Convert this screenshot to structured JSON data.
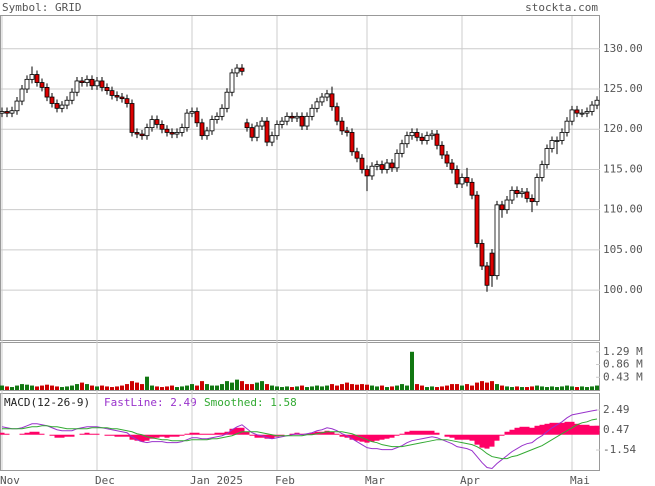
{
  "chart_data": [
    {
      "type": "candlestick",
      "title": "Symbol: GRID",
      "source": "stockta.com",
      "ylim": [
        93.8,
        134.2
      ],
      "yticks": [
        {
          "value": 100,
          "label": "100.00"
        },
        {
          "value": 105,
          "label": "105.00"
        },
        {
          "value": 110,
          "label": "110.00"
        },
        {
          "value": 115,
          "label": "115.00"
        },
        {
          "value": 120,
          "label": "120.00"
        },
        {
          "value": 125,
          "label": "125.00"
        },
        {
          "value": 130,
          "label": "130.00"
        }
      ],
      "grid": true,
      "up_color": "#ffffff",
      "down_color": "#dd0000",
      "open": [
        122.0,
        122.2,
        122.0,
        122.3,
        123.5,
        125.0,
        126.2,
        126.8,
        125.8,
        125.2,
        124.0,
        123.2,
        122.6,
        123.0,
        123.6,
        124.6,
        126.0,
        125.8,
        126.2,
        125.4,
        126.0,
        125.2,
        124.8,
        124.2,
        124.0,
        123.8,
        123.2,
        119.6,
        119.4,
        119.2,
        120.2,
        121.2,
        120.6,
        120.0,
        119.6,
        119.4,
        119.6,
        120.2,
        122.0,
        122.2,
        120.8,
        119.2,
        119.8,
        121.2,
        121.6,
        122.6,
        124.6,
        127.0,
        127.6,
        120.8,
        120.2,
        119.0,
        120.4,
        121.0,
        118.4,
        119.2,
        120.6,
        121.0,
        121.6,
        121.4,
        121.6,
        120.4,
        121.6,
        122.6,
        123.4,
        124.0,
        124.4,
        122.8,
        121.0,
        119.8,
        119.6,
        117.2,
        116.4,
        115.0,
        114.2,
        115.4,
        115.6,
        115.0,
        115.8,
        115.2,
        117.0,
        118.2,
        119.2,
        119.6,
        119.0,
        118.6,
        119.2,
        119.4,
        118.0,
        116.8,
        115.8,
        115.0,
        113.2,
        114.0,
        113.4,
        111.8,
        105.8,
        103.0,
        104.6,
        101.8,
        110.6,
        110.0,
        111.2,
        112.4,
        112.0,
        112.2,
        111.4,
        111.0,
        114.0,
        115.6,
        117.6,
        118.6,
        118.6,
        119.6,
        121.0,
        122.4,
        122.0,
        122.0,
        122.2,
        123.0
      ],
      "high": [
        122.7,
        122.7,
        122.8,
        124.0,
        125.5,
        126.7,
        127.8,
        127.3,
        126.3,
        125.7,
        124.5,
        123.7,
        123.5,
        124.1,
        125.1,
        126.5,
        126.5,
        126.7,
        126.7,
        126.5,
        126.5,
        125.7,
        125.3,
        124.7,
        124.5,
        124.3,
        123.7,
        120.1,
        119.9,
        120.7,
        121.7,
        121.7,
        121.1,
        120.5,
        120.1,
        120.1,
        120.7,
        122.5,
        122.7,
        122.7,
        121.3,
        120.3,
        121.7,
        122.1,
        123.1,
        125.1,
        127.5,
        128.1,
        128.1,
        121.3,
        120.7,
        120.9,
        121.5,
        121.5,
        119.7,
        121.1,
        121.5,
        122.1,
        122.1,
        122.1,
        122.1,
        122.1,
        123.1,
        123.9,
        124.5,
        124.9,
        125.3,
        123.3,
        121.5,
        120.3,
        120.1,
        117.7,
        116.9,
        115.5,
        115.9,
        116.1,
        116.1,
        116.3,
        116.3,
        117.5,
        118.7,
        119.7,
        120.1,
        120.1,
        119.5,
        119.7,
        119.9,
        119.9,
        118.5,
        117.3,
        116.3,
        115.5,
        114.5,
        115.2,
        113.9,
        112.3,
        106.3,
        103.5,
        105.1,
        111.1,
        111.1,
        111.7,
        112.9,
        112.9,
        112.7,
        112.7,
        111.9,
        114.5,
        116.1,
        118.1,
        119.1,
        119.1,
        120.1,
        121.5,
        122.9,
        122.9,
        122.5,
        122.7,
        123.5,
        124.1
      ],
      "low": [
        121.5,
        121.5,
        121.5,
        121.8,
        123.0,
        124.5,
        125.7,
        125.3,
        124.7,
        123.5,
        122.7,
        122.1,
        122.1,
        122.5,
        123.1,
        124.1,
        125.3,
        125.3,
        124.9,
        124.9,
        124.7,
        124.3,
        123.7,
        123.5,
        123.3,
        122.7,
        119.1,
        118.9,
        118.7,
        118.7,
        119.7,
        120.1,
        119.5,
        119.1,
        118.9,
        118.9,
        119.1,
        119.7,
        121.5,
        120.3,
        118.7,
        118.7,
        119.3,
        120.7,
        121.1,
        122.1,
        124.1,
        126.5,
        126.7,
        119.7,
        118.5,
        118.5,
        119.9,
        117.9,
        117.9,
        118.7,
        120.1,
        120.5,
        120.9,
        120.9,
        119.9,
        119.9,
        121.1,
        122.1,
        122.9,
        123.5,
        122.3,
        120.5,
        119.3,
        119.1,
        116.7,
        115.9,
        114.5,
        112.3,
        113.7,
        114.9,
        114.5,
        114.5,
        114.7,
        114.7,
        116.5,
        117.7,
        118.7,
        118.5,
        118.1,
        118.1,
        118.7,
        117.5,
        116.3,
        115.3,
        114.5,
        112.7,
        112.7,
        112.9,
        111.3,
        105.3,
        102.5,
        99.8,
        100.4,
        101.3,
        109.0,
        109.5,
        110.7,
        111.5,
        111.5,
        110.9,
        109.7,
        110.5,
        113.5,
        115.1,
        117.1,
        116.9,
        118.1,
        119.1,
        120.5,
        121.5,
        121.5,
        121.5,
        121.7,
        122.5
      ],
      "close": [
        122.2,
        122.0,
        122.3,
        123.5,
        125.0,
        126.2,
        126.8,
        125.8,
        125.2,
        124.0,
        123.2,
        122.6,
        123.0,
        123.6,
        124.6,
        126.0,
        125.8,
        126.2,
        125.4,
        126.0,
        125.2,
        124.8,
        124.2,
        124.0,
        123.8,
        123.2,
        119.6,
        119.4,
        119.2,
        120.2,
        121.2,
        120.6,
        120.0,
        119.6,
        119.4,
        119.6,
        120.2,
        122.0,
        122.2,
        120.8,
        119.2,
        119.8,
        121.2,
        121.6,
        122.6,
        124.6,
        127.0,
        127.6,
        127.2,
        120.2,
        119.0,
        120.4,
        121.0,
        118.4,
        119.2,
        120.6,
        121.0,
        121.6,
        121.4,
        121.6,
        120.4,
        121.6,
        122.6,
        123.4,
        124.0,
        124.4,
        122.8,
        121.0,
        119.8,
        119.6,
        117.2,
        116.4,
        115.0,
        114.2,
        115.4,
        115.6,
        115.0,
        115.8,
        115.2,
        117.0,
        118.2,
        119.2,
        119.6,
        119.0,
        118.6,
        119.2,
        119.4,
        118.0,
        116.8,
        115.8,
        115.0,
        113.2,
        114.0,
        113.4,
        111.8,
        105.8,
        103.0,
        100.6,
        101.8,
        110.6,
        110.0,
        111.2,
        112.4,
        112.0,
        112.2,
        111.4,
        111.0,
        114.0,
        115.6,
        117.6,
        118.6,
        118.6,
        119.6,
        121.0,
        122.4,
        122.0,
        122.0,
        122.2,
        123.0,
        123.6
      ]
    },
    {
      "type": "volume",
      "ylim": [
        0,
        1.62
      ],
      "yticks": [
        {
          "value": 0.43,
          "label": "0.43 M"
        },
        {
          "value": 0.86,
          "label": "0.86 M"
        },
        {
          "value": 1.29,
          "label": "1.29 M"
        }
      ],
      "up_color": "#117711",
      "down_color": "#cc0000",
      "values": [
        0.15,
        0.12,
        0.1,
        0.15,
        0.2,
        0.18,
        0.15,
        0.12,
        0.15,
        0.18,
        0.15,
        0.12,
        0.1,
        0.12,
        0.15,
        0.2,
        0.25,
        0.2,
        0.15,
        0.12,
        0.15,
        0.12,
        0.1,
        0.12,
        0.15,
        0.2,
        0.3,
        0.25,
        0.2,
        0.45,
        0.15,
        0.12,
        0.1,
        0.12,
        0.15,
        0.1,
        0.12,
        0.15,
        0.2,
        0.15,
        0.3,
        0.2,
        0.15,
        0.15,
        0.2,
        0.3,
        0.25,
        0.35,
        0.3,
        0.2,
        0.2,
        0.25,
        0.3,
        0.2,
        0.15,
        0.12,
        0.1,
        0.12,
        0.1,
        0.12,
        0.15,
        0.1,
        0.12,
        0.15,
        0.12,
        0.15,
        0.2,
        0.15,
        0.2,
        0.25,
        0.2,
        0.18,
        0.2,
        0.18,
        0.15,
        0.12,
        0.15,
        0.1,
        0.12,
        0.15,
        0.2,
        0.15,
        1.29,
        0.2,
        0.15,
        0.1,
        0.12,
        0.1,
        0.12,
        0.15,
        0.2,
        0.2,
        0.15,
        0.2,
        0.15,
        0.25,
        0.3,
        0.25,
        0.3,
        0.2,
        0.15,
        0.12,
        0.1,
        0.12,
        0.1,
        0.1,
        0.12,
        0.15,
        0.12,
        0.1,
        0.12,
        0.1,
        0.12,
        0.15,
        0.12,
        0.1,
        0.12,
        0.1,
        0.12,
        0.15
      ]
    },
    {
      "type": "macd",
      "title": "MACD(12-26-9)",
      "fast_label": "FastLine: 2.49",
      "smooth_label": "Smoothed: 1.58",
      "ylim": [
        -3.55,
        4.2
      ],
      "yticks": [
        -1.54,
        0.47,
        2.49
      ],
      "categories": [
        "Nov",
        null,
        null,
        null,
        null,
        null,
        null,
        null,
        null,
        null,
        null,
        null,
        null,
        null,
        null,
        null,
        null,
        null,
        null,
        "Dec",
        null,
        null,
        null,
        null,
        null,
        null,
        null,
        null,
        null,
        null,
        null,
        null,
        null,
        null,
        null,
        null,
        null,
        null,
        "Jan 2025",
        null,
        null,
        null,
        null,
        null,
        null,
        null,
        null,
        null,
        null,
        null,
        null,
        null,
        null,
        null,
        null,
        "Feb",
        null,
        null,
        null,
        null,
        null,
        null,
        null,
        null,
        null,
        null,
        null,
        null,
        null,
        null,
        null,
        null,
        null,
        "Mar",
        null,
        null,
        null,
        null,
        null,
        null,
        null,
        null,
        null,
        null,
        null,
        null,
        null,
        null,
        null,
        null,
        null,
        null,
        "Apr",
        null,
        null,
        null,
        null,
        null,
        null,
        null,
        null,
        null,
        null,
        null,
        null,
        null,
        null,
        null,
        null,
        null,
        null,
        null,
        null,
        null,
        "Mai",
        null,
        null,
        null,
        null,
        null
      ],
      "series": [
        {
          "name": "FastLine",
          "color": "#9933cc",
          "values": [
            0.8,
            0.7,
            0.6,
            0.6,
            0.7,
            0.9,
            1.1,
            1.1,
            1.0,
            0.9,
            0.7,
            0.5,
            0.4,
            0.4,
            0.4,
            0.6,
            0.7,
            0.8,
            0.8,
            0.8,
            0.7,
            0.6,
            0.5,
            0.4,
            0.3,
            0.2,
            -0.2,
            -0.5,
            -0.7,
            -0.8,
            -0.7,
            -0.7,
            -0.7,
            -0.8,
            -0.8,
            -0.8,
            -0.7,
            -0.5,
            -0.3,
            -0.3,
            -0.4,
            -0.4,
            -0.3,
            -0.2,
            -0.1,
            0.1,
            0.5,
            0.8,
            1.0,
            0.6,
            0.2,
            0.0,
            -0.1,
            -0.3,
            -0.4,
            -0.3,
            -0.2,
            -0.1,
            0.0,
            0.1,
            0.0,
            0.1,
            0.2,
            0.4,
            0.5,
            0.7,
            0.6,
            0.4,
            0.1,
            -0.1,
            -0.4,
            -0.7,
            -1.0,
            -1.3,
            -1.4,
            -1.4,
            -1.5,
            -1.5,
            -1.5,
            -1.3,
            -1.1,
            -0.8,
            -0.6,
            -0.5,
            -0.4,
            -0.3,
            -0.2,
            -0.3,
            -0.5,
            -0.7,
            -0.9,
            -1.2,
            -1.3,
            -1.4,
            -1.6,
            -2.2,
            -2.8,
            -3.3,
            -3.4,
            -2.9,
            -2.5,
            -2.1,
            -1.7,
            -1.4,
            -1.1,
            -0.9,
            -0.8,
            -0.4,
            -0.1,
            0.3,
            0.7,
            1.0,
            1.3,
            1.7,
            2.0,
            2.1,
            2.2,
            2.3,
            2.4,
            2.49
          ]
        },
        {
          "name": "Smoothed",
          "color": "#33aa33",
          "values": [
            0.6,
            0.6,
            0.6,
            0.6,
            0.6,
            0.7,
            0.8,
            0.8,
            0.9,
            0.9,
            0.8,
            0.8,
            0.7,
            0.6,
            0.6,
            0.6,
            0.6,
            0.6,
            0.7,
            0.7,
            0.7,
            0.7,
            0.6,
            0.6,
            0.5,
            0.4,
            0.3,
            0.1,
            0.0,
            -0.2,
            -0.3,
            -0.4,
            -0.5,
            -0.5,
            -0.6,
            -0.6,
            -0.6,
            -0.6,
            -0.5,
            -0.5,
            -0.5,
            -0.5,
            -0.4,
            -0.4,
            -0.3,
            -0.2,
            -0.1,
            0.1,
            0.3,
            0.3,
            0.3,
            0.3,
            0.2,
            0.1,
            0.0,
            -0.1,
            -0.1,
            -0.1,
            -0.1,
            -0.1,
            -0.1,
            0.0,
            0.0,
            0.1,
            0.2,
            0.3,
            0.3,
            0.3,
            0.3,
            0.2,
            0.1,
            -0.1,
            -0.3,
            -0.5,
            -0.7,
            -0.8,
            -1.0,
            -1.1,
            -1.2,
            -1.2,
            -1.2,
            -1.1,
            -1.0,
            -0.9,
            -0.8,
            -0.7,
            -0.6,
            -0.5,
            -0.5,
            -0.5,
            -0.6,
            -0.7,
            -0.8,
            -0.9,
            -1.0,
            -1.2,
            -1.5,
            -1.9,
            -2.2,
            -2.3,
            -2.4,
            -2.4,
            -2.2,
            -2.1,
            -1.9,
            -1.7,
            -1.5,
            -1.3,
            -1.1,
            -0.8,
            -0.5,
            -0.2,
            0.1,
            0.4,
            0.7,
            1.0,
            1.2,
            1.3,
            1.5,
            1.58
          ]
        }
      ],
      "histogram_color": "#ff0066",
      "histogram": [
        0.2,
        0.1,
        0,
        0,
        0.1,
        0.2,
        0.3,
        0.3,
        0.1,
        0,
        -0.1,
        -0.3,
        -0.3,
        -0.2,
        -0.2,
        0,
        0.1,
        0.2,
        0.1,
        0.1,
        0,
        -0.1,
        -0.1,
        -0.2,
        -0.2,
        -0.2,
        -0.5,
        -0.6,
        -0.7,
        -0.6,
        -0.4,
        -0.3,
        -0.2,
        -0.3,
        -0.2,
        -0.2,
        -0.1,
        0.1,
        0.2,
        0.2,
        0.1,
        0.1,
        0.1,
        0.2,
        0.2,
        0.3,
        0.6,
        0.7,
        0.7,
        0.3,
        -0.1,
        -0.3,
        -0.3,
        -0.4,
        -0.4,
        -0.2,
        -0.1,
        0,
        0.1,
        0.2,
        0.1,
        0.1,
        0.2,
        0.3,
        0.3,
        0.4,
        0.3,
        0.1,
        -0.2,
        -0.3,
        -0.5,
        -0.6,
        -0.7,
        -0.8,
        -0.7,
        -0.6,
        -0.5,
        -0.4,
        -0.3,
        -0.1,
        0.1,
        0.3,
        0.4,
        0.4,
        0.4,
        0.4,
        0.4,
        0.2,
        0,
        -0.2,
        -0.3,
        -0.5,
        -0.5,
        -0.5,
        -0.6,
        -1.0,
        -1.3,
        -1.4,
        -1.2,
        -0.6,
        -0.1,
        0.3,
        0.5,
        0.7,
        0.8,
        0.8,
        0.7,
        0.9,
        1.0,
        1.1,
        1.2,
        1.2,
        1.2,
        1.3,
        1.3,
        1.1,
        1.0,
        1.0,
        0.9,
        0.91
      ]
    }
  ]
}
